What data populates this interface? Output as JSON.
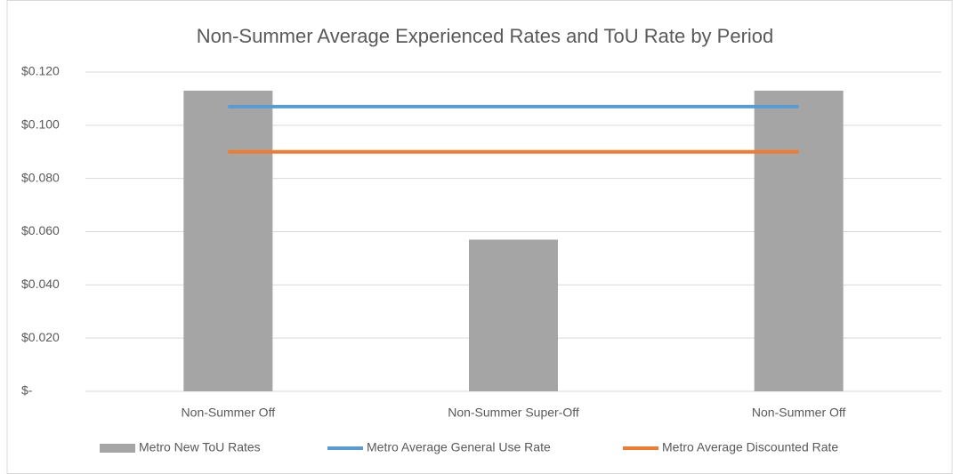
{
  "chart_data": {
    "type": "bar",
    "title": "Non-Summer Average Experienced Rates and ToU Rate by Period",
    "categories": [
      "Non-Summer Off",
      "Non-Summer Super-Off",
      "Non-Summer Off"
    ],
    "series": [
      {
        "name": "Metro New ToU Rates",
        "type": "bar",
        "color": "#a5a5a5",
        "values": [
          0.113,
          0.057,
          0.113
        ]
      },
      {
        "name": "Metro Average General Use Rate",
        "type": "line",
        "color": "#5b9bd5",
        "values": [
          0.107,
          0.107,
          0.107
        ]
      },
      {
        "name": "Metro Average Discounted Rate",
        "type": "line",
        "color": "#ed7d31",
        "values": [
          0.09,
          0.09,
          0.09
        ]
      }
    ],
    "ylim": [
      0,
      0.12
    ],
    "yticks": [
      {
        "value": 0,
        "label": "$-"
      },
      {
        "value": 0.02,
        "label": "$0.020"
      },
      {
        "value": 0.04,
        "label": "$0.040"
      },
      {
        "value": 0.06,
        "label": "$0.060"
      },
      {
        "value": 0.08,
        "label": "$0.080"
      },
      {
        "value": 0.1,
        "label": "$0.100"
      },
      {
        "value": 0.12,
        "label": "$0.120"
      }
    ],
    "grid": true,
    "legend": "bottom"
  }
}
